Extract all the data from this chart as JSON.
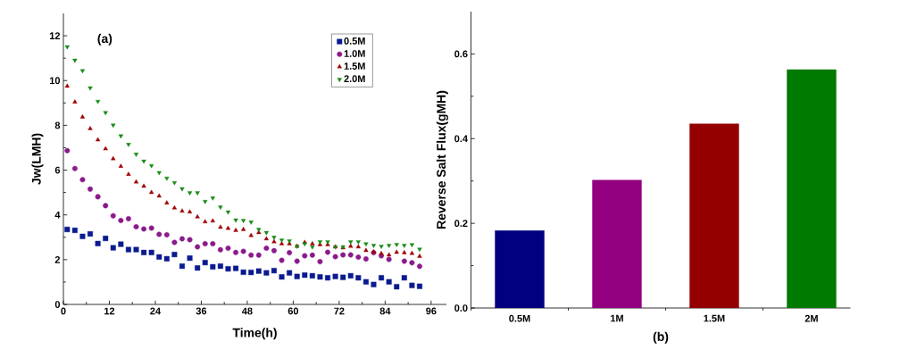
{
  "chart_data": [
    {
      "type": "scatter",
      "xlabel": "Time(h)",
      "ylabel": "Jw(LMH)",
      "annotations": [
        "(a)"
      ],
      "legend": "top right",
      "x": [
        1,
        3,
        5,
        7,
        9,
        11,
        13,
        15,
        17,
        19,
        21,
        23,
        25,
        27,
        29,
        31,
        33,
        35,
        37,
        39,
        41,
        43,
        45,
        47,
        49,
        51,
        53,
        55,
        57,
        59,
        61,
        63,
        65,
        67,
        69,
        71,
        73,
        75,
        77,
        79,
        81,
        83,
        85,
        87,
        89,
        91,
        93
      ],
      "xlim": [
        0,
        100
      ],
      "ylim": [
        0,
        13
      ],
      "xticks": [
        0,
        12,
        24,
        36,
        48,
        60,
        72,
        84,
        96
      ],
      "yticks": [
        0,
        2,
        4,
        6,
        8,
        10,
        12
      ],
      "series": [
        {
          "name": "0.5M",
          "color": "#0a1a8f",
          "marker": "square",
          "values": [
            3.35,
            3.31,
            3.04,
            3.15,
            2.72,
            2.95,
            2.53,
            2.69,
            2.45,
            2.45,
            2.32,
            2.32,
            2.12,
            2.04,
            2.23,
            1.71,
            2.07,
            1.63,
            1.87,
            1.68,
            1.71,
            1.59,
            1.61,
            1.44,
            1.43,
            1.49,
            1.41,
            1.51,
            1.23,
            1.41,
            1.25,
            1.31,
            1.28,
            1.23,
            1.19,
            1.25,
            1.21,
            1.28,
            1.19,
            1.01,
            0.89,
            1.19,
            1.01,
            0.79,
            1.19,
            0.85,
            0.81
          ]
        },
        {
          "name": "1.0M",
          "color": "#8b1a8b",
          "marker": "circle",
          "values": [
            6.87,
            6.07,
            5.57,
            5.15,
            4.81,
            4.41,
            3.96,
            3.75,
            3.83,
            3.47,
            3.37,
            3.41,
            3.13,
            3.11,
            2.77,
            2.93,
            2.89,
            2.57,
            2.71,
            2.71,
            2.44,
            2.51,
            2.32,
            2.37,
            2.2,
            2.2,
            2.51,
            2.4,
            1.97,
            2.31,
            1.93,
            2.17,
            2.2,
            1.91,
            2.33,
            2.13,
            2.21,
            2.21,
            2.11,
            2.03,
            2.31,
            2.17,
            2.01,
            null,
            1.93,
            1.86,
            1.7
          ]
        },
        {
          "name": "1.5M",
          "color": "#a00000",
          "marker": "triangle",
          "values": [
            9.75,
            9.04,
            8.37,
            7.85,
            7.35,
            6.95,
            6.51,
            6.17,
            5.81,
            5.47,
            5.28,
            5.0,
            4.84,
            4.53,
            4.31,
            4.17,
            4.13,
            3.91,
            3.69,
            3.73,
            3.45,
            3.4,
            3.31,
            3.35,
            3.08,
            3.21,
            2.93,
            2.8,
            2.71,
            2.71,
            2.6,
            2.77,
            2.71,
            2.67,
            2.67,
            2.57,
            2.53,
            2.6,
            2.57,
            2.41,
            2.35,
            2.27,
            2.21,
            2.33,
            2.31,
            2.28,
            2.15
          ]
        },
        {
          "name": "2.0M",
          "color": "#168c16",
          "marker": "triangle-down",
          "values": [
            11.51,
            10.91,
            10.44,
            9.67,
            9.07,
            8.57,
            8.01,
            7.53,
            7.15,
            6.71,
            6.4,
            6.2,
            5.89,
            5.64,
            5.44,
            5.17,
            4.99,
            4.99,
            4.6,
            4.76,
            4.35,
            4.13,
            3.77,
            3.75,
            3.68,
            3.35,
            3.21,
            3.0,
            2.88,
            2.84,
            2.6,
            2.71,
            2.57,
            2.8,
            2.8,
            2.57,
            2.57,
            2.8,
            2.8,
            2.71,
            2.64,
            2.6,
            2.64,
            2.68,
            2.64,
            2.67,
            2.47
          ]
        }
      ]
    },
    {
      "type": "bar",
      "xlabel": "(b)",
      "ylabel": "Reverse Salt Flux(gMH)",
      "categories": [
        "0.5M",
        "1M",
        "1.5M",
        "2M"
      ],
      "values": [
        0.183,
        0.302,
        0.435,
        0.563
      ],
      "colors": [
        "#000080",
        "#930080",
        "#940000",
        "#007a00"
      ],
      "ylim": [
        0,
        0.7
      ],
      "yticks": [
        {
          "value": 0.0,
          "label": "0.0"
        },
        0.2,
        0.4,
        0.6
      ]
    }
  ]
}
